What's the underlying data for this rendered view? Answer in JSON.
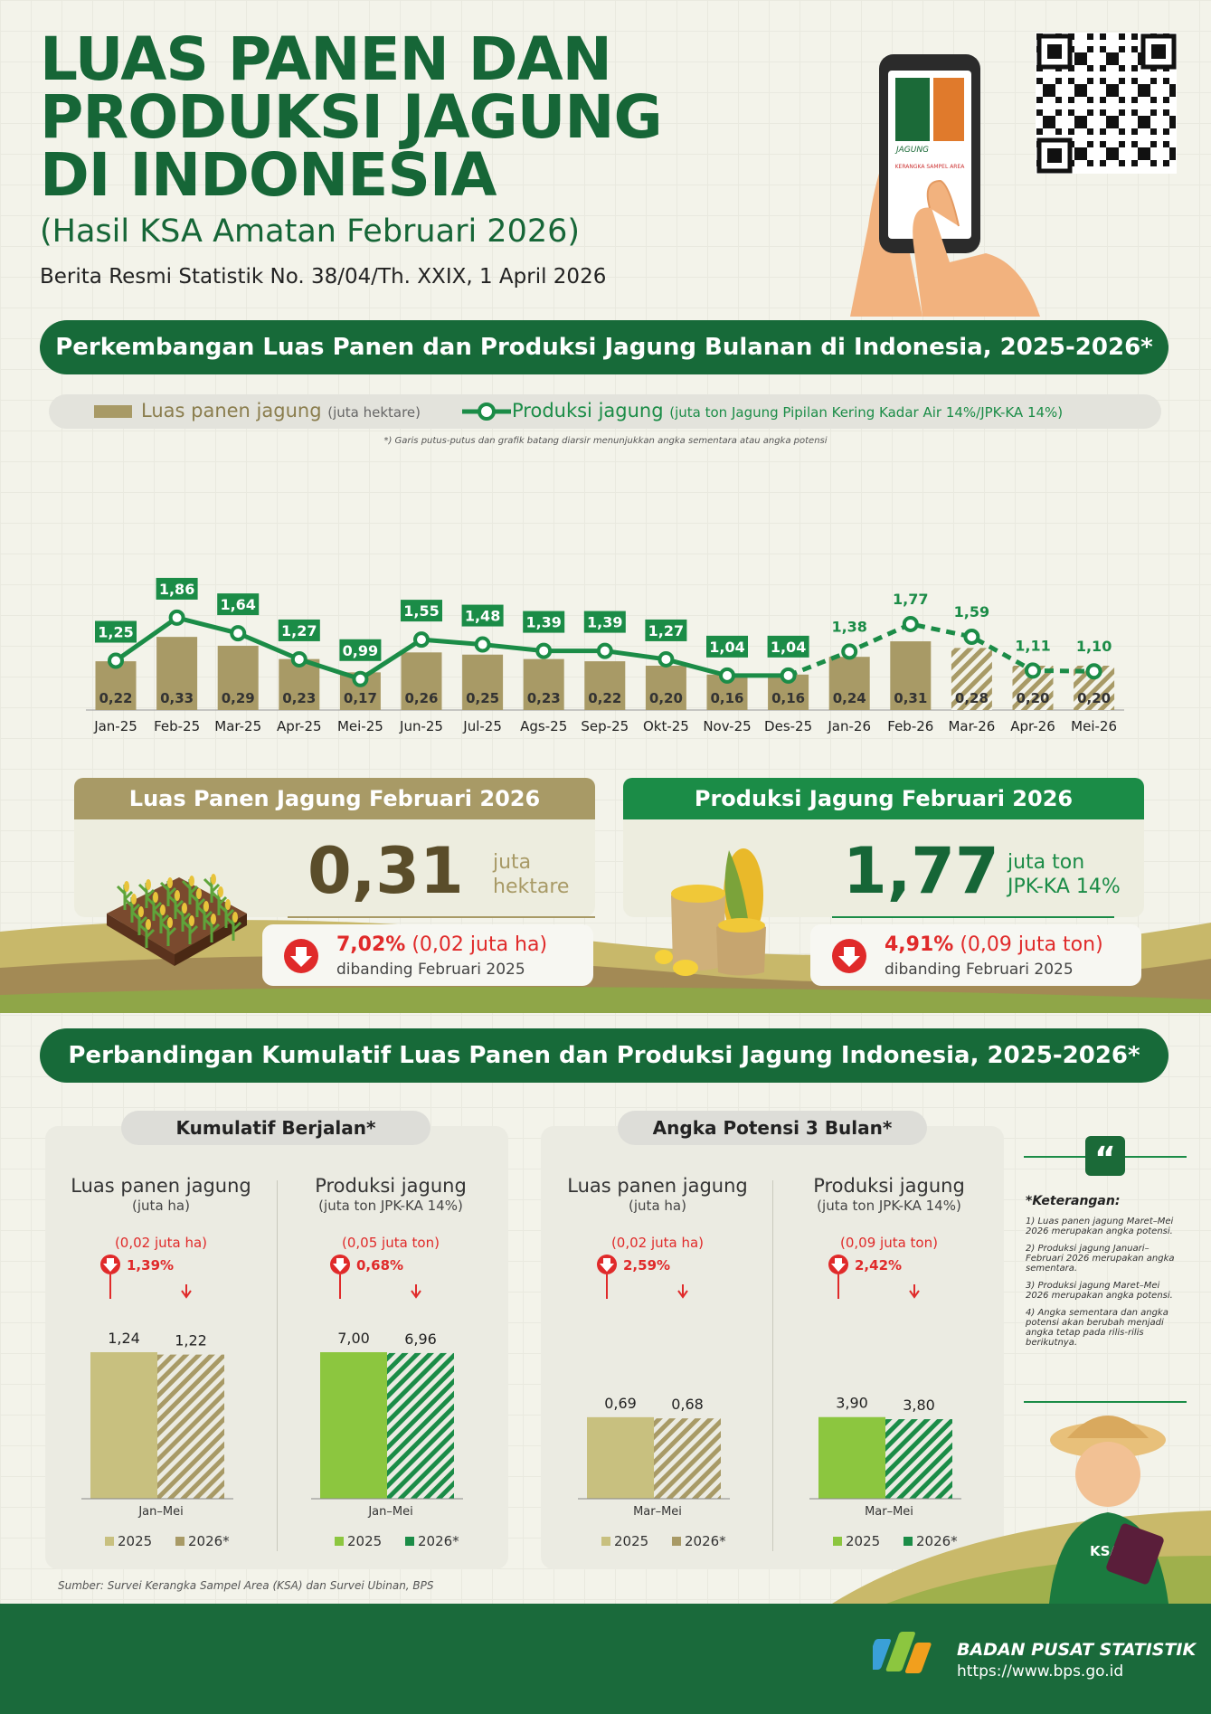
{
  "header": {
    "title_lines": [
      "LUAS PANEN DAN",
      "PRODUKSI JAGUNG",
      "DI INDONESIA"
    ],
    "subtitle": "(Hasil KSA Amatan Februari 2026)",
    "berita": "Berita Resmi Statistik No. 38/04/Th. XXIX, 1 April 2026",
    "phone_logo_text": "JAGUNG",
    "phone_logo_caption": "KERANGKA SAMPEL AREA"
  },
  "section1": {
    "banner": "Perkembangan Luas Panen dan Produksi Jagung Bulanan di Indonesia, 2025-2026*",
    "legend_bar_label": "Luas panen jagung",
    "legend_bar_unit": "(juta hektare)",
    "legend_line_label": "Produksi jagung",
    "legend_line_unit": "(juta ton Jagung Pipilan Kering Kadar Air 14%/JPK-KA 14%)",
    "note": "*) Garis putus-putus dan grafik batang diarsir menunjukkan angka sementara atau angka potensi"
  },
  "chart_data": [
    {
      "type": "bar",
      "categories": [
        "Jan-25",
        "Feb-25",
        "Mar-25",
        "Apr-25",
        "Mei-25",
        "Jun-25",
        "Jul-25",
        "Ags-25",
        "Sep-25",
        "Okt-25",
        "Nov-25",
        "Des-25",
        "Jan-26",
        "Feb-26",
        "Mar-26",
        "Apr-26",
        "Mei-26"
      ],
      "series": [
        {
          "name": "Luas panen jagung",
          "values": [
            0.22,
            0.33,
            0.29,
            0.23,
            0.17,
            0.26,
            0.25,
            0.23,
            0.22,
            0.2,
            0.16,
            0.16,
            0.24,
            0.31,
            0.28,
            0.2,
            0.2
          ],
          "hatched_from_index": 14
        },
        {
          "name": "Produksi jagung",
          "values": [
            1.25,
            1.86,
            1.64,
            1.27,
            0.99,
            1.55,
            1.48,
            1.39,
            1.39,
            1.27,
            1.04,
            1.04,
            1.38,
            1.77,
            1.59,
            1.11,
            1.1
          ],
          "dashed_from_index": 11
        }
      ],
      "bar_labels": [
        "0,22",
        "0,33",
        "0,29",
        "0,23",
        "0,17",
        "0,26",
        "0,25",
        "0,23",
        "0,22",
        "0,20",
        "0,16",
        "0,16",
        "0,24",
        "0,31",
        "0,28",
        "0,20",
        "0,20"
      ],
      "line_labels": [
        "1,25",
        "1,86",
        "1,64",
        "1,27",
        "0,99",
        "1,55",
        "1,48",
        "1,39",
        "1,39",
        "1,27",
        "1,04",
        "1,04",
        "1,38",
        "1,77",
        "1,59",
        "1,11",
        "1,10"
      ],
      "colors": {
        "bar": "#a89a66",
        "line": "#1b8c47"
      }
    },
    {
      "type": "bar",
      "title": "Luas panen jagung",
      "unit": "(juta ha)",
      "categories": [
        "Jan–Mei"
      ],
      "series": [
        {
          "name": "2025",
          "values": [
            1.24
          ]
        },
        {
          "name": "2026*",
          "values": [
            1.22
          ]
        }
      ],
      "labels": [
        "1,24",
        "1,22"
      ],
      "change_abs": "(0,02 juta ha)",
      "change_pct": "1,39%"
    },
    {
      "type": "bar",
      "title": "Produksi jagung",
      "unit": "(juta ton JPK-KA 14%)",
      "categories": [
        "Jan–Mei"
      ],
      "series": [
        {
          "name": "2025",
          "values": [
            7.0
          ]
        },
        {
          "name": "2026*",
          "values": [
            6.96
          ]
        }
      ],
      "labels": [
        "7,00",
        "6,96"
      ],
      "change_abs": "(0,05 juta ton)",
      "change_pct": "0,68%"
    },
    {
      "type": "bar",
      "title": "Luas panen jagung",
      "unit": "(juta ha)",
      "categories": [
        "Mar–Mei"
      ],
      "series": [
        {
          "name": "2025",
          "values": [
            0.69
          ]
        },
        {
          "name": "2026*",
          "values": [
            0.68
          ]
        }
      ],
      "labels": [
        "0,69",
        "0,68"
      ],
      "change_abs": "(0,02 juta ha)",
      "change_pct": "2,59%"
    },
    {
      "type": "bar",
      "title": "Produksi jagung",
      "unit": "(juta ton JPK-KA 14%)",
      "categories": [
        "Mar–Mei"
      ],
      "series": [
        {
          "name": "2025",
          "values": [
            3.9
          ]
        },
        {
          "name": "2026*",
          "values": [
            3.8
          ]
        }
      ],
      "labels": [
        "3,90",
        "3,80"
      ],
      "change_abs": "(0,09 juta ton)",
      "change_pct": "2,42%"
    }
  ],
  "feb_cards": {
    "luas": {
      "header": "Luas Panen Jagung Februari 2026",
      "value": "0,31",
      "unit_line1": "juta",
      "unit_line2": "hektare",
      "change_pct": "7,02%",
      "change_abs": "(0,02 juta ha)",
      "compare": "dibanding Februari 2025"
    },
    "produksi": {
      "header": "Produksi Jagung Februari 2026",
      "value": "1,77",
      "unit_line1": "juta ton",
      "unit_line2": "JPK-KA 14%",
      "change_pct": "4,91%",
      "change_abs": "(0,09 juta ton)",
      "compare": "dibanding Februari 2025"
    }
  },
  "section2": {
    "banner": "Perbandingan Kumulatif Luas Panen dan Produksi Jagung Indonesia, 2025-2026*",
    "panel_left_title": "Kumulatif Berjalan*",
    "panel_right_title": "Angka Potensi 3 Bulan*",
    "legend_2025": "2025",
    "legend_2026": "2026*"
  },
  "keterangan": {
    "title": "*Keterangan:",
    "quote_mark": "“",
    "items": [
      "1) Luas panen jagung Maret–Mei 2026 merupakan angka potensi.",
      "2) Produksi jagung Januari–Februari 2026 merupakan angka sementara.",
      "3) Produksi jagung Maret–Mei 2026 merupakan angka potensi.",
      "4) Angka sementara dan angka potensi akan berubah menjadi angka tetap pada rilis-rilis berikutnya."
    ]
  },
  "farmer_badge": "KSA",
  "source": "Sumber: Survei Kerangka Sampel Area (KSA) dan Survei Ubinan, BPS",
  "footer": {
    "org": "BADAN PUSAT STATISTIK",
    "url": "https://www.bps.go.id"
  }
}
